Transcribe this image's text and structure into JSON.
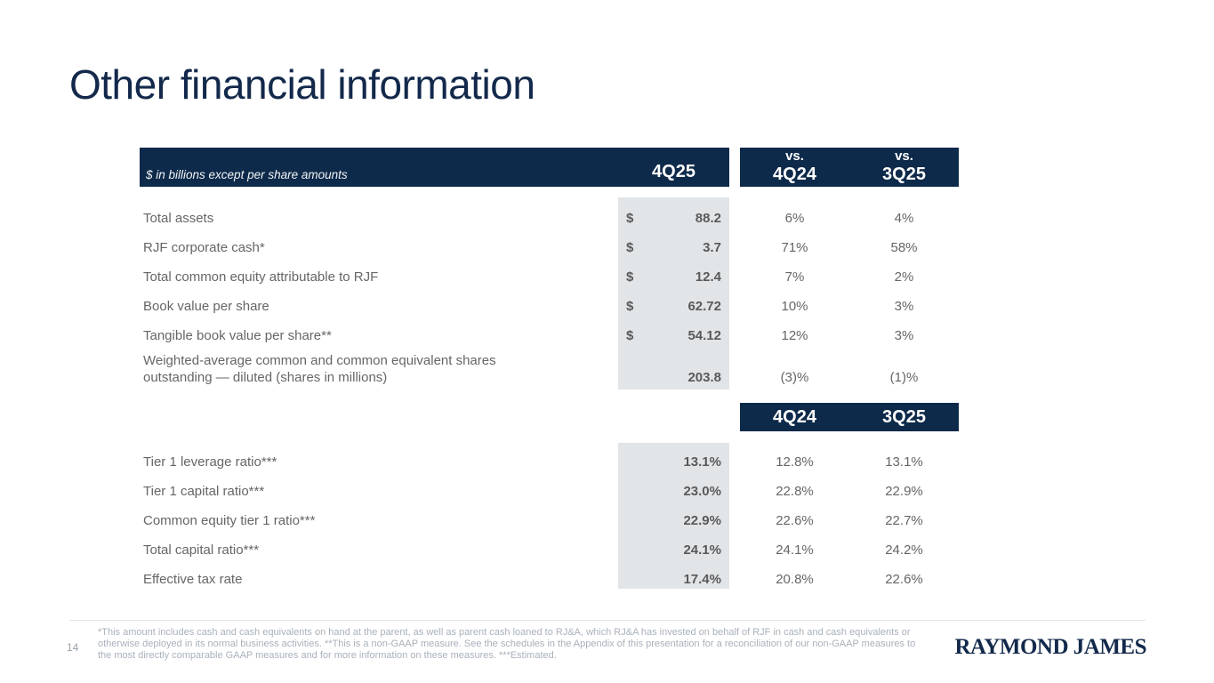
{
  "slide": {
    "title": "Other financial information",
    "page_number": "14",
    "logo_text": "RAYMOND JAMES",
    "footnote": "*This amount includes cash and cash equivalents on hand at the parent, as well as parent cash loaned to RJ&A, which RJ&A has invested on behalf of RJF in cash and cash equivalents or otherwise deployed in its normal business activities. **This is a non-GAAP measure. See the schedules in the Appendix of this presentation for a reconciliation of our non-GAAP measures to the most directly comparable GAAP measures and for more information on these measures. ***Estimated."
  },
  "colors": {
    "navy_header": "#0e2a4a",
    "title_navy": "#13294b",
    "shaded_column": "#e2e5e7",
    "label_text": "#666666",
    "footnote_text": "#a9b1bb"
  },
  "table": {
    "unit_note": "$ in billions except per share amounts",
    "header": {
      "current_period": "4Q25",
      "vs1_line1": "vs.",
      "vs1_line2": "4Q24",
      "vs2_line1": "vs.",
      "vs2_line2": "3Q25"
    },
    "section1": {
      "rows": [
        {
          "label": "Total assets",
          "currency": "$",
          "value": "88.2",
          "vs_4q24": "6%",
          "vs_3q25": "4%"
        },
        {
          "label": "RJF corporate cash*",
          "currency": "$",
          "value": "3.7",
          "vs_4q24": "71%",
          "vs_3q25": "58%"
        },
        {
          "label": "Total common equity attributable to RJF",
          "currency": "$",
          "value": "12.4",
          "vs_4q24": "7%",
          "vs_3q25": "2%"
        },
        {
          "label": "Book value per share",
          "currency": "$",
          "value": "62.72",
          "vs_4q24": "10%",
          "vs_3q25": "3%"
        },
        {
          "label": "Tangible book value per share**",
          "currency": "$",
          "value": "54.12",
          "vs_4q24": "12%",
          "vs_3q25": "3%"
        },
        {
          "label": "Weighted-average common and common equivalent shares\n outstanding — diluted (shares in millions)",
          "currency": "",
          "value": "203.8",
          "vs_4q24": "(3)%",
          "vs_3q25": "(1)%"
        }
      ]
    },
    "subheader": {
      "col1": "4Q24",
      "col2": "3Q25"
    },
    "section2": {
      "rows": [
        {
          "label": "Tier 1 leverage ratio***",
          "value": "13.1%",
          "q4_24": "12.8%",
          "q3_25": "13.1%"
        },
        {
          "label": "Tier 1 capital ratio***",
          "value": "23.0%",
          "q4_24": "22.8%",
          "q3_25": "22.9%"
        },
        {
          "label": "Common equity tier 1 ratio***",
          "value": "22.9%",
          "q4_24": "22.6%",
          "q3_25": "22.7%"
        },
        {
          "label": "Total capital ratio***",
          "value": "24.1%",
          "q4_24": "24.1%",
          "q3_25": "24.2%"
        },
        {
          "label": "Effective tax rate",
          "value": "17.4%",
          "q4_24": "20.8%",
          "q3_25": "22.6%"
        }
      ]
    }
  }
}
